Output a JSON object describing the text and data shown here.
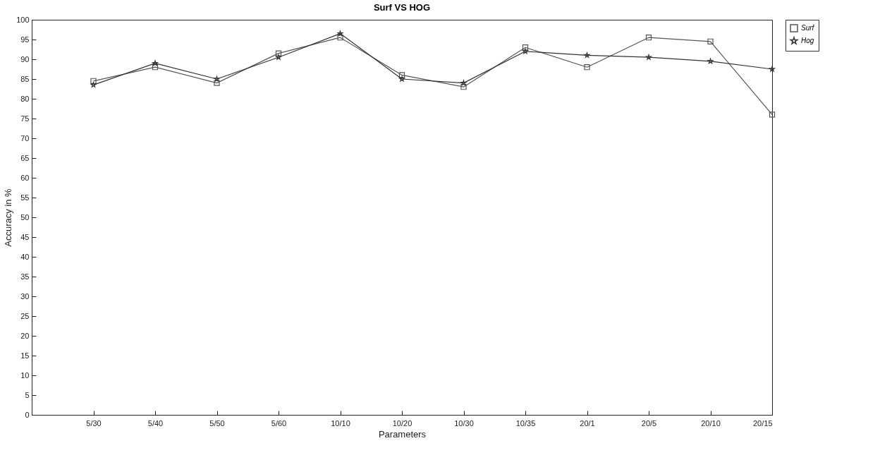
{
  "chart_data": {
    "type": "line",
    "title": "Surf VS HOG",
    "xlabel": "Parameters",
    "ylabel": "Accuracy in %",
    "categories": [
      null,
      "5/30",
      "5/40",
      "5/50",
      "5/60",
      "10/10",
      "10/20",
      "10/30",
      "10/35",
      "20/1",
      "20/5",
      "20/10",
      "20/15"
    ],
    "ylim": [
      0,
      100
    ],
    "yticks": [
      0,
      5,
      10,
      15,
      20,
      25,
      30,
      35,
      40,
      45,
      50,
      55,
      60,
      65,
      70,
      75,
      80,
      85,
      90,
      95,
      100
    ],
    "series": [
      {
        "name": "Surf",
        "color": "#555555",
        "marker": "square",
        "values": [
          null,
          84.5,
          88,
          84,
          91.5,
          95.5,
          86,
          83,
          93,
          88,
          95.5,
          94.5,
          76
        ]
      },
      {
        "name": "Hog",
        "color": "#333333",
        "marker": "star",
        "values": [
          null,
          83.5,
          89,
          85,
          90.5,
          96.5,
          85,
          84,
          92,
          91,
          90.5,
          89.5,
          87.5
        ]
      }
    ],
    "legend": "top right",
    "grid": false,
    "line_style": "solid"
  }
}
